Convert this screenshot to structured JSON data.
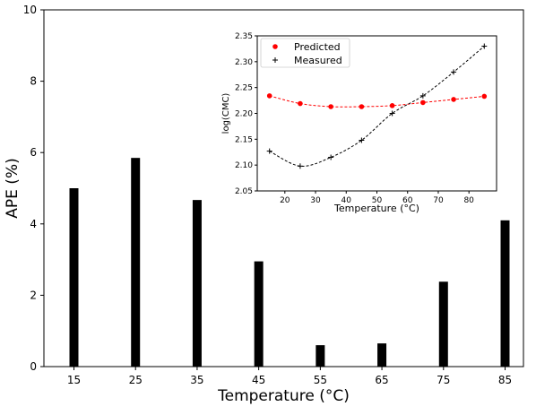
{
  "chart_data": [
    {
      "type": "bar",
      "categories": [
        "15",
        "25",
        "35",
        "45",
        "55",
        "65",
        "75",
        "85"
      ],
      "values": [
        5.0,
        5.85,
        4.67,
        2.95,
        0.6,
        0.65,
        2.38,
        4.1
      ],
      "xlabel": "Temperature (°C)",
      "ylabel": "APE (%)",
      "ylim": [
        0,
        10
      ],
      "yticks": [
        "0",
        "2",
        "4",
        "6",
        "8",
        "10"
      ],
      "bar_color": "#000000"
    },
    {
      "type": "line",
      "xlabel": "Temperature (°C)",
      "ylabel": "log(CMC)",
      "xlim": [
        11,
        89
      ],
      "ylim": [
        2.05,
        2.35
      ],
      "xticks": [
        "20",
        "30",
        "40",
        "50",
        "60",
        "70",
        "80"
      ],
      "yticks": [
        "2.05",
        "2.10",
        "2.15",
        "2.20",
        "2.25",
        "2.30",
        "2.35"
      ],
      "legend_position": "top-left",
      "series": [
        {
          "name": "Predicted",
          "x": [
            15,
            25,
            35,
            45,
            55,
            65,
            75,
            85
          ],
          "y": [
            2.234,
            2.219,
            2.213,
            2.213,
            2.215,
            2.221,
            2.227,
            2.233
          ],
          "marker": "circle",
          "color": "#ff0000"
        },
        {
          "name": "Measured",
          "x": [
            15,
            25,
            35,
            45,
            55,
            65,
            75,
            85
          ],
          "y": [
            2.127,
            2.098,
            2.115,
            2.148,
            2.2,
            2.234,
            2.28,
            2.33
          ],
          "marker": "plus",
          "color": "#000000"
        }
      ]
    }
  ]
}
